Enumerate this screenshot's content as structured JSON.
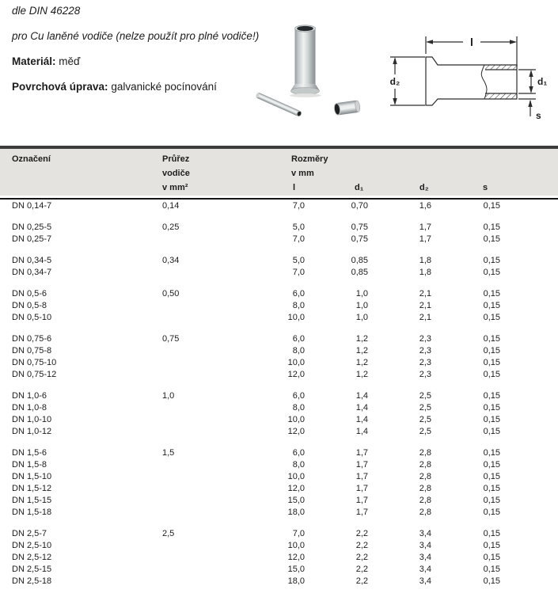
{
  "intro": {
    "standard": "dle DIN 46228",
    "usage": "pro Cu laněné vodiče (nelze použít pro plné vodiče!)",
    "material_label": "Materiál:",
    "material_value": "měď",
    "surface_label": "Povrchová úprava:",
    "surface_value": "galvanické pocínování"
  },
  "diagram": {
    "dim_length": "l",
    "dim_d1": "d₁",
    "dim_d2": "d₂",
    "dim_s": "s"
  },
  "colors": {
    "header_band": "#e4e3df",
    "top_bar": "#3c3c3c",
    "rule": "#151515"
  },
  "table": {
    "header": {
      "col1": "Označení",
      "col2_l1": "Průřez",
      "col2_l2": "vodiče",
      "col2_l3": "v mm²",
      "col3_l1": "Rozměry",
      "col3_l2": "v mm",
      "sub_l": "l",
      "sub_d1": "d₁",
      "sub_d2": "d₂",
      "sub_s": "s"
    },
    "groups": [
      {
        "rows": [
          {
            "name": "DN 0,14-7",
            "cross": "0,14",
            "l": "7,0",
            "d1": "0,70",
            "d2": "1,6",
            "s": "0,15"
          }
        ]
      },
      {
        "rows": [
          {
            "name": "DN 0,25-5",
            "cross": "0,25",
            "l": "5,0",
            "d1": "0,75",
            "d2": "1,7",
            "s": "0,15"
          },
          {
            "name": "DN 0,25-7",
            "cross": "",
            "l": "7,0",
            "d1": "0,75",
            "d2": "1,7",
            "s": "0,15"
          }
        ]
      },
      {
        "rows": [
          {
            "name": "DN 0,34-5",
            "cross": "0,34",
            "l": "5,0",
            "d1": "0,85",
            "d2": "1,8",
            "s": "0,15"
          },
          {
            "name": "DN 0,34-7",
            "cross": "",
            "l": "7,0",
            "d1": "0,85",
            "d2": "1,8",
            "s": "0,15"
          }
        ]
      },
      {
        "rows": [
          {
            "name": "DN 0,5-6",
            "cross": "0,50",
            "l": "6,0",
            "d1": "1,0",
            "d2": "2,1",
            "s": "0,15"
          },
          {
            "name": "DN 0,5-8",
            "cross": "",
            "l": "8,0",
            "d1": "1,0",
            "d2": "2,1",
            "s": "0,15"
          },
          {
            "name": "DN 0,5-10",
            "cross": "",
            "l": "10,0",
            "d1": "1,0",
            "d2": "2,1",
            "s": "0,15"
          }
        ]
      },
      {
        "rows": [
          {
            "name": "DN 0,75-6",
            "cross": "0,75",
            "l": "6,0",
            "d1": "1,2",
            "d2": "2,3",
            "s": "0,15"
          },
          {
            "name": "DN 0,75-8",
            "cross": "",
            "l": "8,0",
            "d1": "1,2",
            "d2": "2,3",
            "s": "0,15"
          },
          {
            "name": "DN 0,75-10",
            "cross": "",
            "l": "10,0",
            "d1": "1,2",
            "d2": "2,3",
            "s": "0,15"
          },
          {
            "name": "DN 0,75-12",
            "cross": "",
            "l": "12,0",
            "d1": "1,2",
            "d2": "2,3",
            "s": "0,15"
          }
        ]
      },
      {
        "rows": [
          {
            "name": "DN 1,0-6",
            "cross": "1,0",
            "l": "6,0",
            "d1": "1,4",
            "d2": "2,5",
            "s": "0,15"
          },
          {
            "name": "DN 1,0-8",
            "cross": "",
            "l": "8,0",
            "d1": "1,4",
            "d2": "2,5",
            "s": "0,15"
          },
          {
            "name": "DN 1,0-10",
            "cross": "",
            "l": "10,0",
            "d1": "1,4",
            "d2": "2,5",
            "s": "0,15"
          },
          {
            "name": "DN 1,0-12",
            "cross": "",
            "l": "12,0",
            "d1": "1,4",
            "d2": "2,5",
            "s": "0,15"
          }
        ]
      },
      {
        "rows": [
          {
            "name": "DN 1,5-6",
            "cross": "1,5",
            "l": "6,0",
            "d1": "1,7",
            "d2": "2,8",
            "s": "0,15"
          },
          {
            "name": "DN 1,5-8",
            "cross": "",
            "l": "8,0",
            "d1": "1,7",
            "d2": "2,8",
            "s": "0,15"
          },
          {
            "name": "DN 1,5-10",
            "cross": "",
            "l": "10,0",
            "d1": "1,7",
            "d2": "2,8",
            "s": "0,15"
          },
          {
            "name": "DN 1,5-12",
            "cross": "",
            "l": "12,0",
            "d1": "1,7",
            "d2": "2,8",
            "s": "0,15"
          },
          {
            "name": "DN 1,5-15",
            "cross": "",
            "l": "15,0",
            "d1": "1,7",
            "d2": "2,8",
            "s": "0,15"
          },
          {
            "name": "DN 1,5-18",
            "cross": "",
            "l": "18,0",
            "d1": "1,7",
            "d2": "2,8",
            "s": "0,15"
          }
        ]
      },
      {
        "rows": [
          {
            "name": "DN 2,5-7",
            "cross": "2,5",
            "l": "7,0",
            "d1": "2,2",
            "d2": "3,4",
            "s": "0,15"
          },
          {
            "name": "DN 2,5-10",
            "cross": "",
            "l": "10,0",
            "d1": "2,2",
            "d2": "3,4",
            "s": "0,15"
          },
          {
            "name": "DN 2,5-12",
            "cross": "",
            "l": "12,0",
            "d1": "2,2",
            "d2": "3,4",
            "s": "0,15"
          },
          {
            "name": "DN 2,5-15",
            "cross": "",
            "l": "15,0",
            "d1": "2,2",
            "d2": "3,4",
            "s": "0,15"
          },
          {
            "name": "DN 2,5-18",
            "cross": "",
            "l": "18,0",
            "d1": "2,2",
            "d2": "3,4",
            "s": "0,15"
          }
        ]
      }
    ]
  }
}
